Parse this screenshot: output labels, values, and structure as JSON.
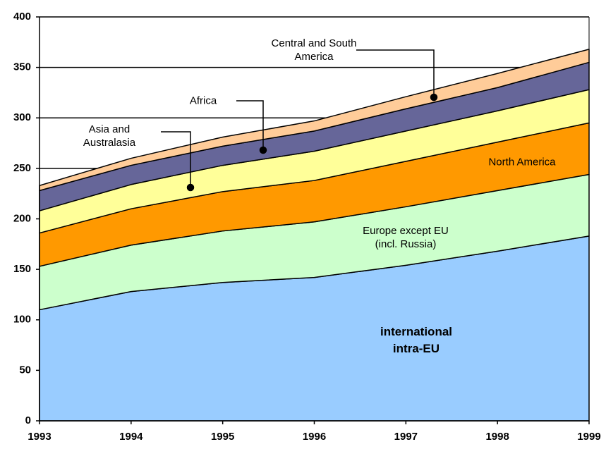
{
  "chart_data": {
    "type": "area",
    "stacked": true,
    "x": [
      1993,
      1994,
      1995,
      1996,
      1997,
      1998,
      1999
    ],
    "xlim": [
      1993,
      1999
    ],
    "xticks": [
      1993,
      1994,
      1995,
      1996,
      1997,
      1998,
      1999
    ],
    "ylim": [
      0,
      400
    ],
    "yticks": [
      0,
      50,
      100,
      150,
      200,
      250,
      300,
      350,
      400
    ],
    "grid": true,
    "series": [
      {
        "name": "international\nintra-EU",
        "color": "#99ccff",
        "values": [
          110,
          128,
          137,
          142,
          154,
          168,
          183
        ]
      },
      {
        "name": "Europe except EU\n(incl. Russia)",
        "color": "#ccffcc",
        "values": [
          43,
          46,
          51,
          55,
          58,
          60,
          61
        ]
      },
      {
        "name": "North America",
        "color": "#ff9900",
        "values": [
          33,
          36,
          39,
          41,
          45,
          48,
          51
        ]
      },
      {
        "name": "Asia and\nAustralasia",
        "color": "#ffff99",
        "values": [
          22,
          24,
          26,
          29,
          30,
          31,
          33
        ]
      },
      {
        "name": "Africa",
        "color": "#666699",
        "values": [
          20,
          19,
          19,
          20,
          22,
          23,
          27
        ]
      },
      {
        "name": "Central and South\nAmerica",
        "color": "#ffcc99",
        "values": [
          5,
          7,
          9,
          10,
          12,
          14,
          13
        ]
      }
    ]
  }
}
